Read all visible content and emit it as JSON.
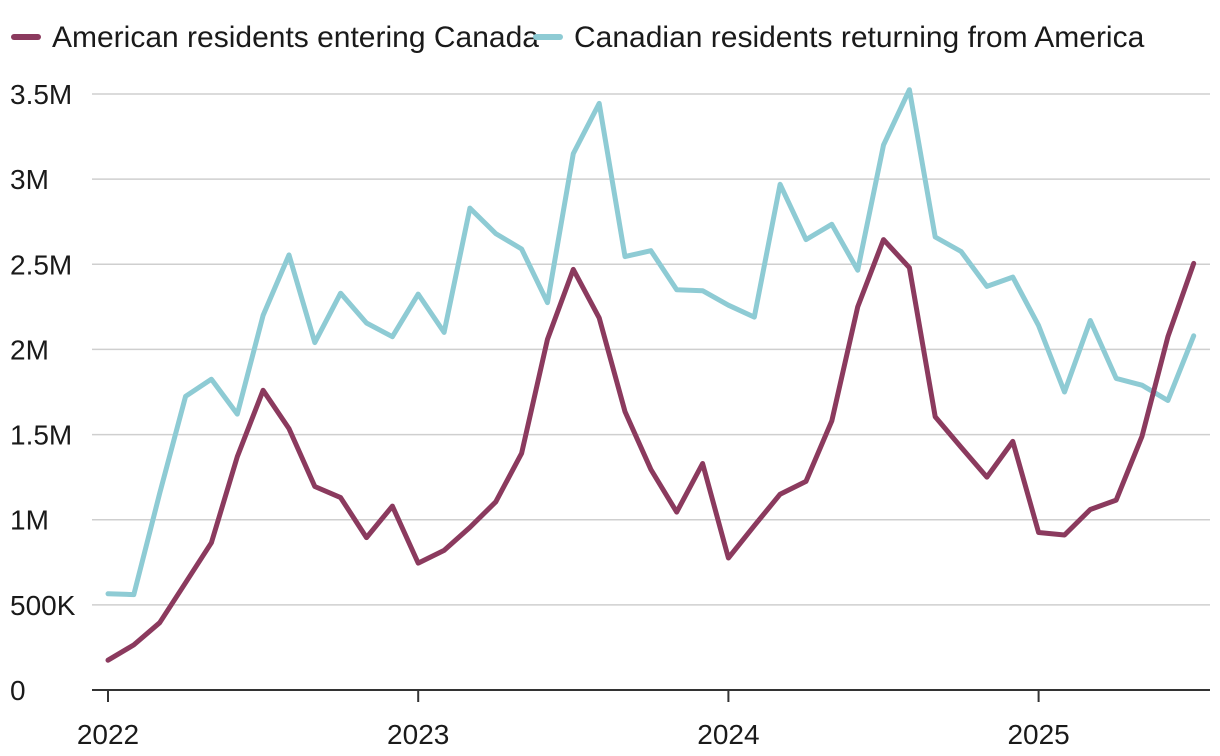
{
  "chart_data": {
    "type": "line",
    "title": "",
    "xlabel": "",
    "ylabel": "",
    "ylim": [
      0,
      3500000
    ],
    "y_ticks": [
      {
        "value": 0,
        "label": "0"
      },
      {
        "value": 500000,
        "label": "500K"
      },
      {
        "value": 1000000,
        "label": "1M"
      },
      {
        "value": 1500000,
        "label": "1.5M"
      },
      {
        "value": 2000000,
        "label": "2M"
      },
      {
        "value": 2500000,
        "label": "2.5M"
      },
      {
        "value": 3000000,
        "label": "3M"
      },
      {
        "value": 3500000,
        "label": "3.5M"
      }
    ],
    "x_ticks": [
      {
        "index": 0,
        "label": "2022"
      },
      {
        "index": 12,
        "label": "2023"
      },
      {
        "index": 24,
        "label": "2024"
      },
      {
        "index": 36,
        "label": "2025"
      }
    ],
    "x_count": 43,
    "legend_position": "top-left",
    "grid": true,
    "series": [
      {
        "name": "American residents entering Canada",
        "color": "#8b3a5e",
        "values": [
          175000,
          265000,
          395000,
          630000,
          865000,
          1370000,
          1760000,
          1535000,
          1195000,
          1130000,
          895000,
          1080000,
          745000,
          820000,
          955000,
          1105000,
          1390000,
          2060000,
          2470000,
          2185000,
          1635000,
          1295000,
          1045000,
          1330000,
          775000,
          965000,
          1150000,
          1225000,
          1580000,
          2250000,
          2645000,
          2480000,
          1605000,
          1425000,
          1250000,
          1460000,
          925000,
          910000,
          1060000,
          1115000,
          1490000,
          2075000,
          2505000
        ]
      },
      {
        "name": "Canadian residents returning from America",
        "color": "#8ecbd4",
        "values": [
          565000,
          560000,
          1155000,
          1725000,
          1825000,
          1620000,
          2200000,
          2555000,
          2040000,
          2330000,
          2155000,
          2075000,
          2325000,
          2100000,
          2830000,
          2680000,
          2590000,
          2275000,
          3150000,
          3445000,
          2545000,
          2580000,
          2350000,
          2345000,
          2260000,
          2190000,
          2970000,
          2645000,
          2735000,
          2465000,
          3200000,
          3525000,
          2660000,
          2575000,
          2370000,
          2425000,
          2140000,
          1750000,
          2170000,
          1830000,
          1790000,
          1700000,
          2080000
        ]
      }
    ]
  }
}
